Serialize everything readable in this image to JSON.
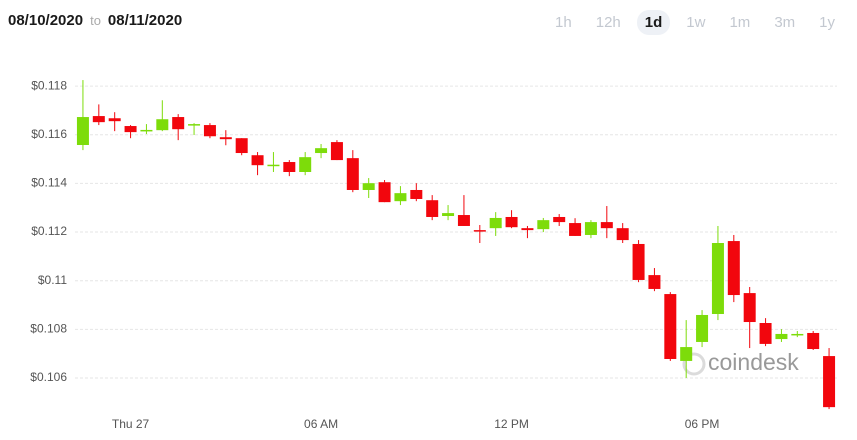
{
  "header": {
    "from": "08/10/2020",
    "to_word": "to",
    "to": "08/11/2020",
    "ranges": [
      "1h",
      "12h",
      "1d",
      "1w",
      "1m",
      "3m",
      "1y"
    ],
    "active": "1d"
  },
  "chart_data": {
    "type": "candlestick",
    "watermark": "coindesk",
    "categories": [
      null,
      null,
      null,
      "Thu 27",
      null,
      null,
      null,
      null,
      null,
      null,
      null,
      null,
      null,
      null,
      null,
      "06 AM",
      null,
      null,
      null,
      null,
      null,
      null,
      null,
      null,
      null,
      null,
      null,
      "12 PM",
      null,
      null,
      null,
      null,
      null,
      null,
      null,
      null,
      null,
      null,
      null,
      "06 PM",
      null,
      null,
      null,
      null,
      null,
      null,
      null,
      null
    ],
    "open": [
      0.11558,
      0.11677,
      0.11668,
      0.11636,
      0.11615,
      0.11619,
      0.11673,
      0.1164,
      0.1164,
      0.1159,
      0.11586,
      0.11516,
      0.11473,
      0.11488,
      0.11447,
      0.11525,
      0.1157,
      0.11504,
      0.11373,
      0.11405,
      0.11327,
      0.11373,
      0.11331,
      0.11266,
      0.1127,
      0.11208,
      0.11216,
      0.11262,
      0.11216,
      0.11212,
      0.11262,
      0.11237,
      0.11188,
      0.11241,
      0.11216,
      0.11151,
      0.11023,
      0.10945,
      0.1067,
      0.10748,
      0.10863,
      0.11163,
      0.10949,
      0.10826,
      0.1076,
      0.10779,
      0.10785,
      0.1069
    ],
    "high": [
      0.11825,
      0.11725,
      0.11693,
      0.1164,
      0.11644,
      0.11742,
      0.11685,
      0.11648,
      0.11648,
      0.11619,
      0.11586,
      0.11529,
      0.11529,
      0.11496,
      0.11529,
      0.11562,
      0.11578,
      0.11537,
      0.11422,
      0.11414,
      0.11389,
      0.11401,
      0.11352,
      0.11311,
      0.11352,
      0.11229,
      0.11282,
      0.1129,
      0.11225,
      0.11258,
      0.11274,
      0.11257,
      0.11249,
      0.11307,
      0.11237,
      0.11167,
      0.11052,
      0.10953,
      0.10838,
      0.10879,
      0.11225,
      0.11188,
      0.10974,
      0.10846,
      0.10801,
      0.10793,
      0.10793,
      0.10723
    ],
    "low": [
      0.11537,
      0.1164,
      0.11615,
      0.11586,
      0.11603,
      0.11615,
      0.11578,
      0.11599,
      0.11586,
      0.11557,
      0.11516,
      0.11434,
      0.11447,
      0.1143,
      0.11434,
      0.11504,
      0.11496,
      0.11364,
      0.1134,
      0.11323,
      0.11311,
      0.11327,
      0.11249,
      0.11249,
      0.11225,
      0.11155,
      0.11184,
      0.11216,
      0.11175,
      0.112,
      0.11225,
      0.11184,
      0.11175,
      0.11175,
      0.11155,
      0.10994,
      0.10957,
      0.1067,
      0.106,
      0.10727,
      0.10838,
      0.10912,
      0.10723,
      0.10731,
      0.10748,
      0.10768,
      0.10715,
      0.10472
    ],
    "close": [
      0.11673,
      0.11652,
      0.11656,
      0.11611,
      0.1162,
      0.11664,
      0.11623,
      0.11644,
      0.11594,
      0.11582,
      0.11525,
      0.11475,
      0.11477,
      0.11447,
      0.11508,
      0.11545,
      0.11496,
      0.11373,
      0.11401,
      0.11323,
      0.1136,
      0.11336,
      0.11262,
      0.11278,
      0.11225,
      0.11204,
      0.11258,
      0.1122,
      0.11208,
      0.11249,
      0.11241,
      0.11184,
      0.11241,
      0.11216,
      0.11167,
      0.11003,
      0.10966,
      0.10678,
      0.10727,
      0.10859,
      0.11155,
      0.10941,
      0.1083,
      0.1074,
      0.10781,
      0.10781,
      0.10719,
      0.1048
    ],
    "up_color": "#7ddc0a",
    "down_color": "#f2060d",
    "ylim": [
      0.1046,
      0.1185
    ],
    "yticks": [
      {
        "value": 0.106,
        "label": "$0.106"
      },
      {
        "value": 0.108,
        "label": "$0.108"
      },
      {
        "value": 0.11,
        "label": "$0.11"
      },
      {
        "value": 0.112,
        "label": "$0.112"
      },
      {
        "value": 0.114,
        "label": "$0.114"
      },
      {
        "value": 0.116,
        "label": "$0.116"
      },
      {
        "value": 0.118,
        "label": "$0.118"
      }
    ],
    "grid": true
  }
}
